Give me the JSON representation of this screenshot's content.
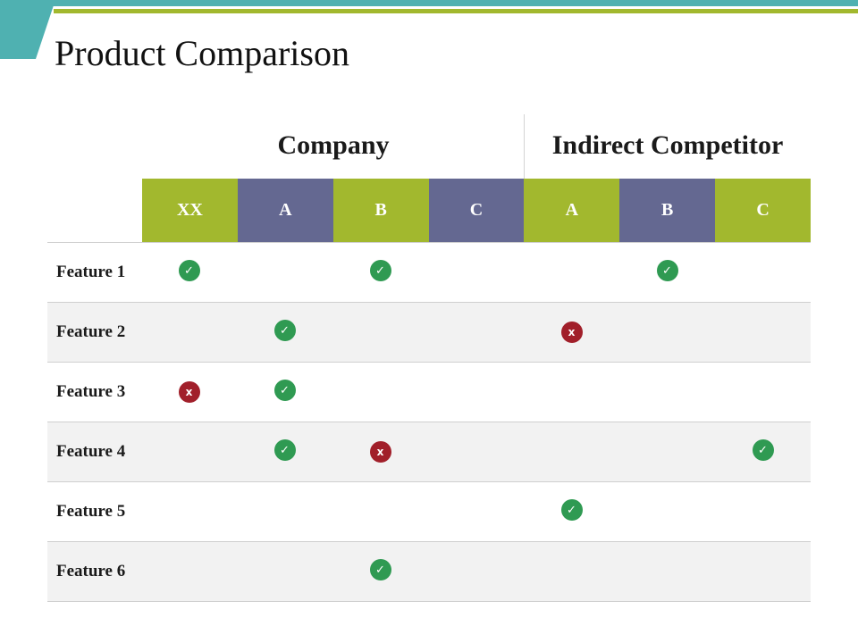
{
  "slide": {
    "title": "Product Comparison"
  },
  "colors": {
    "teal": "#4fb1b1",
    "green": "#a2b82e",
    "slate": "#646891",
    "check": "#2f9a52",
    "cross": "#a11f2a"
  },
  "groups": {
    "company": "Company",
    "indirect_competitor": "Indirect Competitor"
  },
  "columns": [
    {
      "label": "XX",
      "group": "company",
      "color": "#a2b82e"
    },
    {
      "label": "A",
      "group": "company",
      "color": "#646891"
    },
    {
      "label": "B",
      "group": "company",
      "color": "#a2b82e"
    },
    {
      "label": "C",
      "group": "company",
      "color": "#646891"
    },
    {
      "label": "A",
      "group": "indirect_competitor",
      "color": "#a2b82e"
    },
    {
      "label": "B",
      "group": "indirect_competitor",
      "color": "#646891"
    },
    {
      "label": "C",
      "group": "indirect_competitor",
      "color": "#a2b82e"
    }
  ],
  "mark_icons": {
    "check": "check-circle-icon",
    "cross": "x-circle-icon"
  },
  "mark_glyphs": {
    "check": "✓",
    "cross": "x"
  },
  "rows": [
    {
      "label": "Feature 1",
      "marks": [
        "check",
        "",
        "check",
        "",
        "",
        "check",
        ""
      ]
    },
    {
      "label": "Feature 2",
      "marks": [
        "",
        "check",
        "",
        "",
        "cross",
        "",
        ""
      ]
    },
    {
      "label": "Feature 3",
      "marks": [
        "cross",
        "check",
        "",
        "",
        "",
        "",
        ""
      ]
    },
    {
      "label": "Feature 4",
      "marks": [
        "",
        "check",
        "cross",
        "",
        "",
        "",
        "check"
      ]
    },
    {
      "label": "Feature 5",
      "marks": [
        "",
        "",
        "",
        "",
        "check",
        "",
        ""
      ]
    },
    {
      "label": "Feature 6",
      "marks": [
        "",
        "",
        "check",
        "",
        "",
        "",
        ""
      ]
    }
  ]
}
